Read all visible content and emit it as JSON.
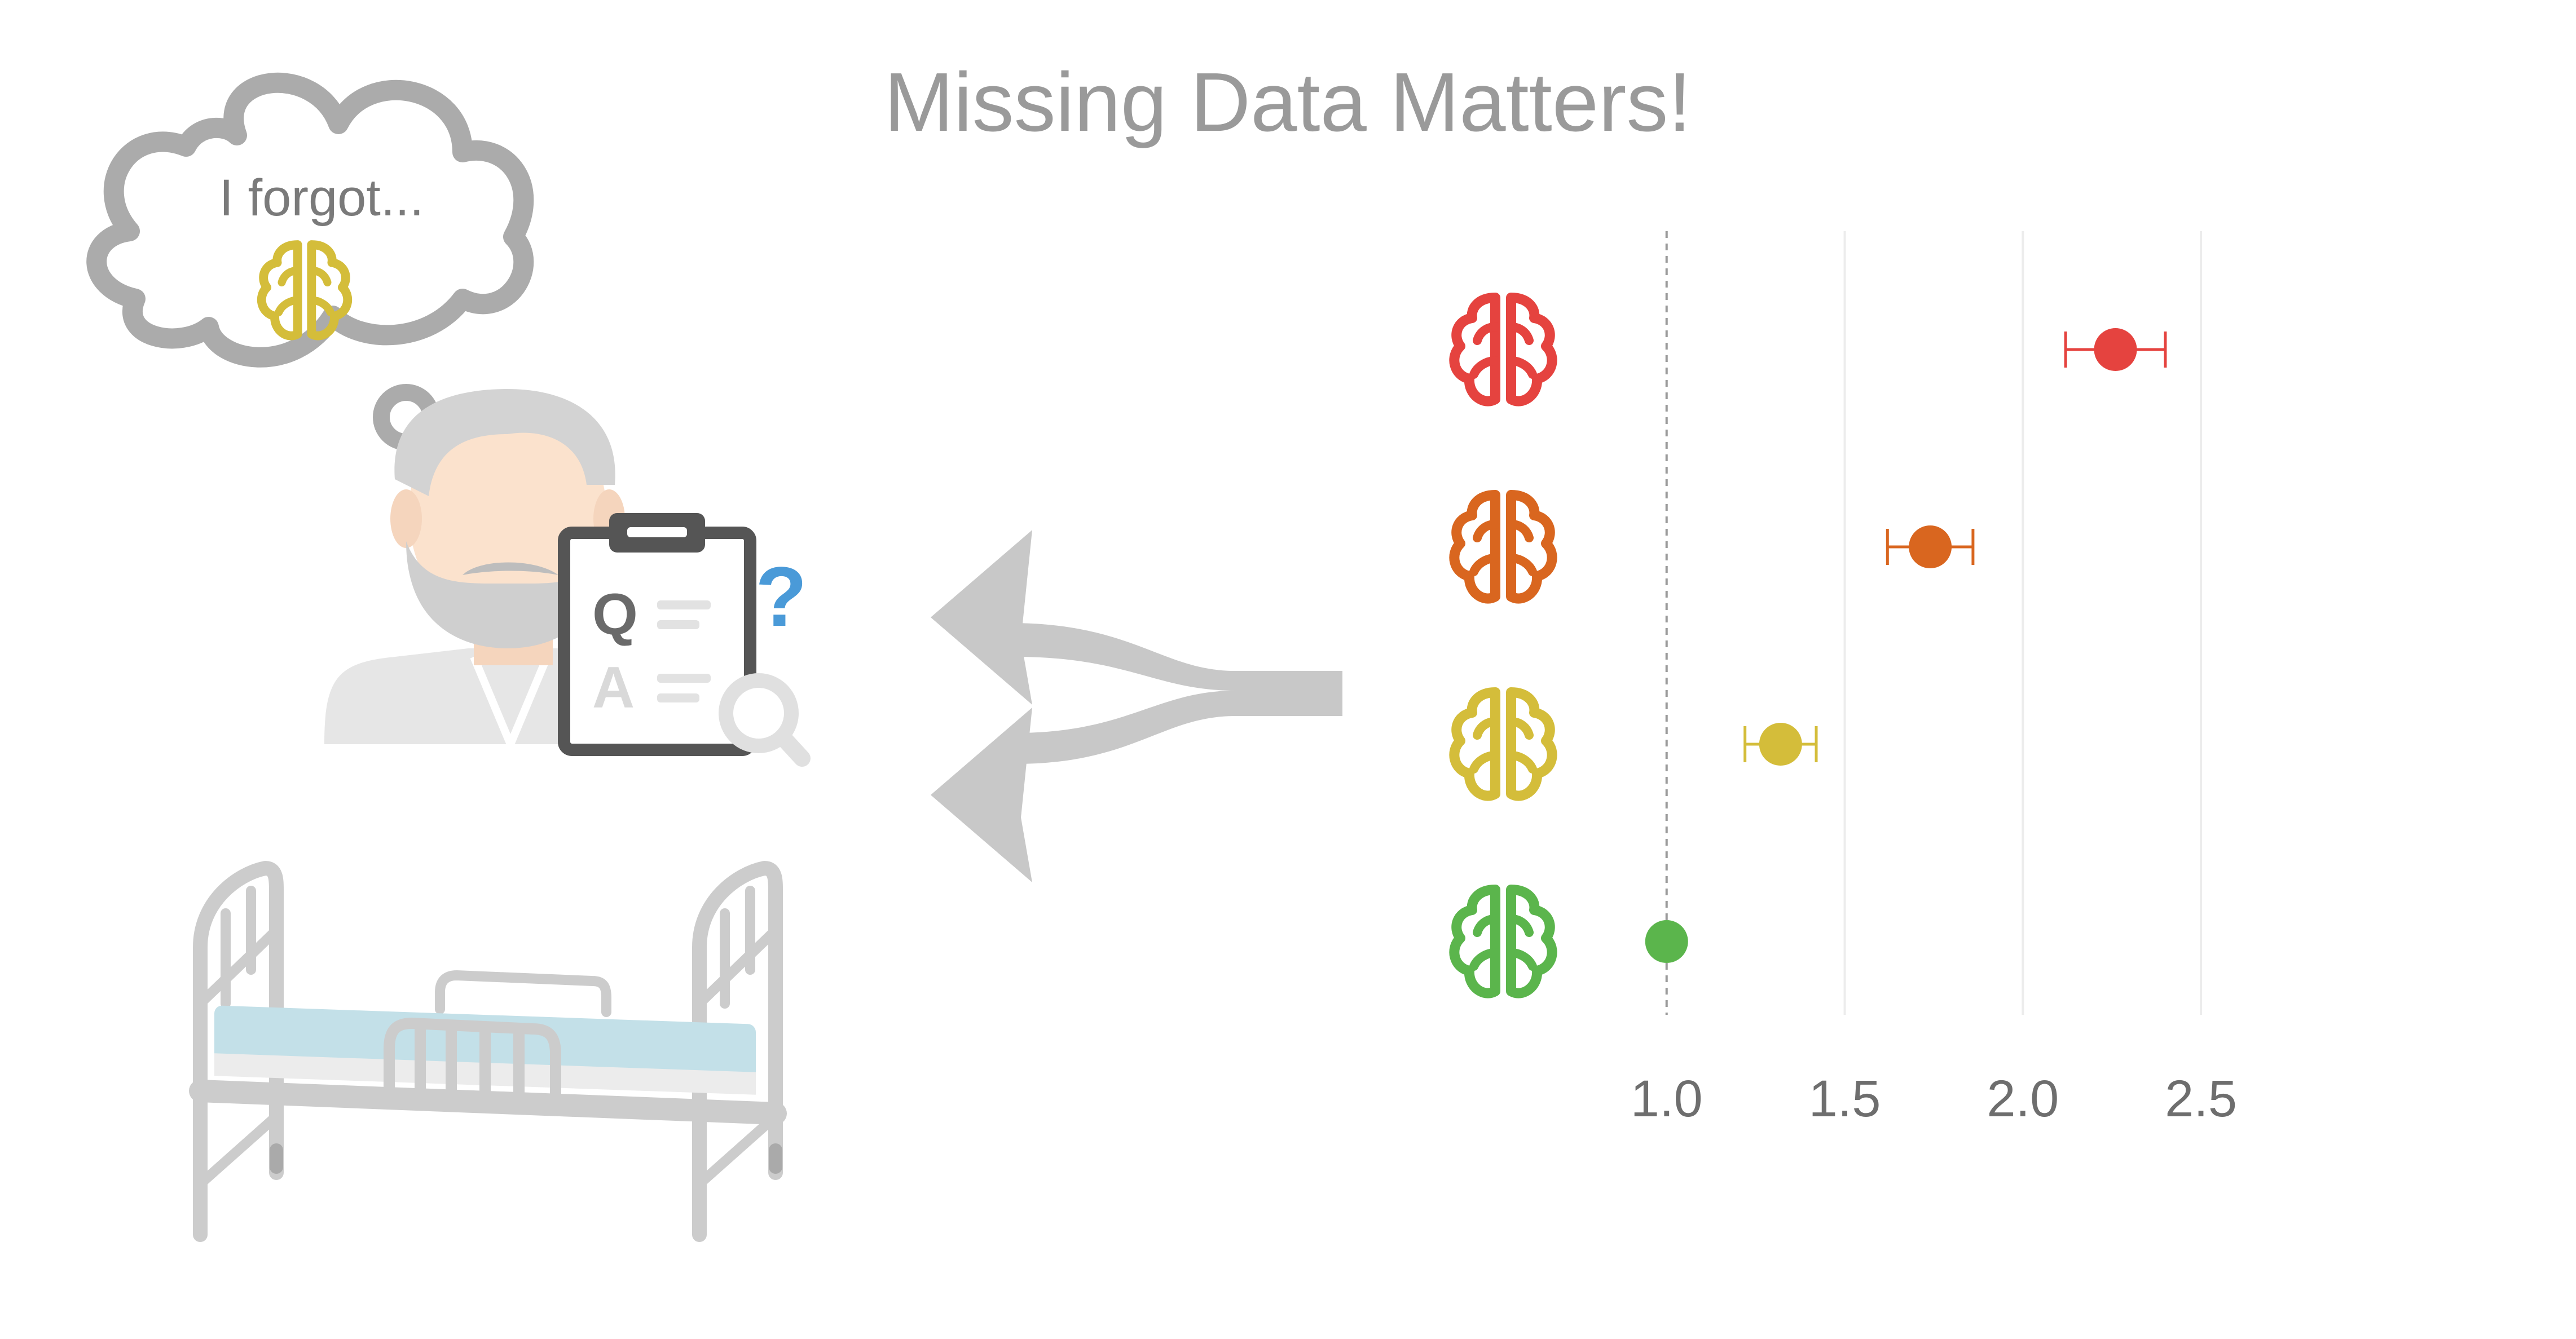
{
  "title": "Missing Data Matters!",
  "thought_bubble": {
    "text": "I forgot..."
  },
  "clipboard": {
    "question_letter": "Q",
    "answer_letter": "A",
    "query_mark": "?"
  },
  "colors": {
    "gray": "#c8c8c8",
    "red": "#e5433f",
    "orange": "#d9661f",
    "yellow": "#d4bd3a",
    "green": "#5bb54c",
    "mattress": "#c3e0e8",
    "skin": "#fbe2cd",
    "question_blue": "#4a9ad8"
  },
  "chart_data": {
    "type": "scatter",
    "x_ticks": [
      1.0,
      1.5,
      2.0,
      2.5
    ],
    "x_tick_labels": [
      "1.0",
      "1.5",
      "2.0",
      "2.5"
    ],
    "xlim": [
      0.85,
      2.75
    ],
    "reference_line": 1.0,
    "grid": true,
    "points": [
      {
        "icon": "brain-icon",
        "color": "#e5433f",
        "x": 2.26,
        "lower": 2.12,
        "upper": 2.4
      },
      {
        "icon": "brain-icon",
        "color": "#d9661f",
        "x": 1.74,
        "lower": 1.62,
        "upper": 1.86
      },
      {
        "icon": "brain-icon",
        "color": "#d4bd3a",
        "x": 1.32,
        "lower": 1.22,
        "upper": 1.42
      },
      {
        "icon": "brain-icon",
        "color": "#5bb54c",
        "x": 1.0
      }
    ]
  }
}
